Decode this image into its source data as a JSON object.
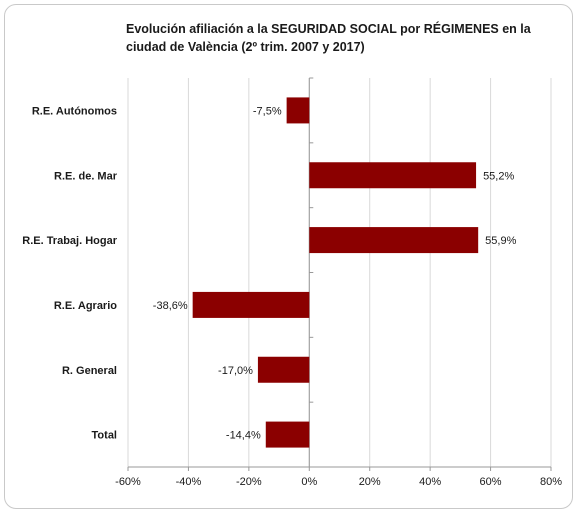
{
  "chart_data": {
    "type": "bar",
    "orientation": "horizontal",
    "title": "Evolución afiliación a la SEGURIDAD SOCIAL por RÉGIMENES en la ciudad de València (2º trim. 2007 y 2017)",
    "categories": [
      "R.E. Autónomos",
      "R.E. de. Mar",
      "R.E. Trabaj. Hogar",
      "R.E. Agrario",
      "R. General",
      "Total"
    ],
    "values": [
      -7.5,
      55.2,
      55.9,
      -38.6,
      -17.0,
      -14.4
    ],
    "data_labels": [
      "-7,5%",
      "55,2%",
      "55,9%",
      "-38,6%",
      "-17,0%",
      "-14,4%"
    ],
    "xlim": [
      -60,
      80
    ],
    "x_ticks": [
      -60,
      -40,
      -20,
      0,
      20,
      40,
      60,
      80
    ],
    "x_tick_labels": [
      "-60%",
      "-40%",
      "-20%",
      "0%",
      "20%",
      "40%",
      "60%",
      "80%"
    ],
    "grid": true,
    "bar_color": "#8b0000",
    "grid_color": "#d9d9d9"
  }
}
